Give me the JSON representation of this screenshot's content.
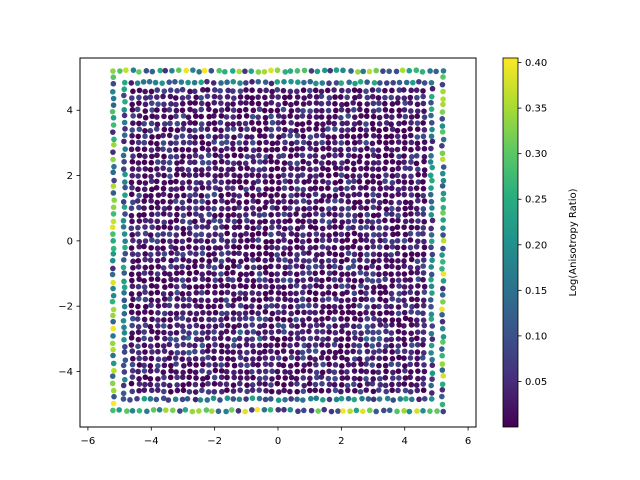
{
  "chart_data": {
    "type": "scatter",
    "title": "",
    "xlabel": "",
    "ylabel": "",
    "xlim": [
      -6.25,
      6.25
    ],
    "ylim": [
      -5.7,
      5.6
    ],
    "x_ticks": [
      -6,
      -4,
      -2,
      0,
      2,
      4,
      6
    ],
    "y_ticks": [
      -4,
      -2,
      0,
      2,
      4
    ],
    "x_tick_labels": [
      "−6",
      "−4",
      "−2",
      "0",
      "2",
      "4",
      "6"
    ],
    "y_tick_labels": [
      "−4",
      "−2",
      "0",
      "2",
      "4"
    ],
    "grid": false,
    "point_grid": {
      "range": [
        -5,
        5
      ],
      "step": 0.2
    },
    "colormap": "viridis",
    "colorbar": {
      "label": "Log(Anisotropy Ratio)",
      "range": [
        0.0,
        0.405
      ],
      "ticks": [
        0.05,
        0.1,
        0.15,
        0.2,
        0.25,
        0.3,
        0.35,
        0.4
      ],
      "tick_labels": [
        "0.05",
        "0.10",
        "0.15",
        "0.20",
        "0.25",
        "0.30",
        "0.35",
        "0.40"
      ]
    },
    "interior_value_range": [
      0.0,
      0.1
    ],
    "edge_value_range": [
      0.05,
      0.405
    ],
    "hotspots": [
      {
        "x": -3,
        "y": -3
      },
      {
        "x": -1,
        "y": -3
      },
      {
        "x": 1,
        "y": -3
      },
      {
        "x": 3,
        "y": -3
      }
    ]
  }
}
